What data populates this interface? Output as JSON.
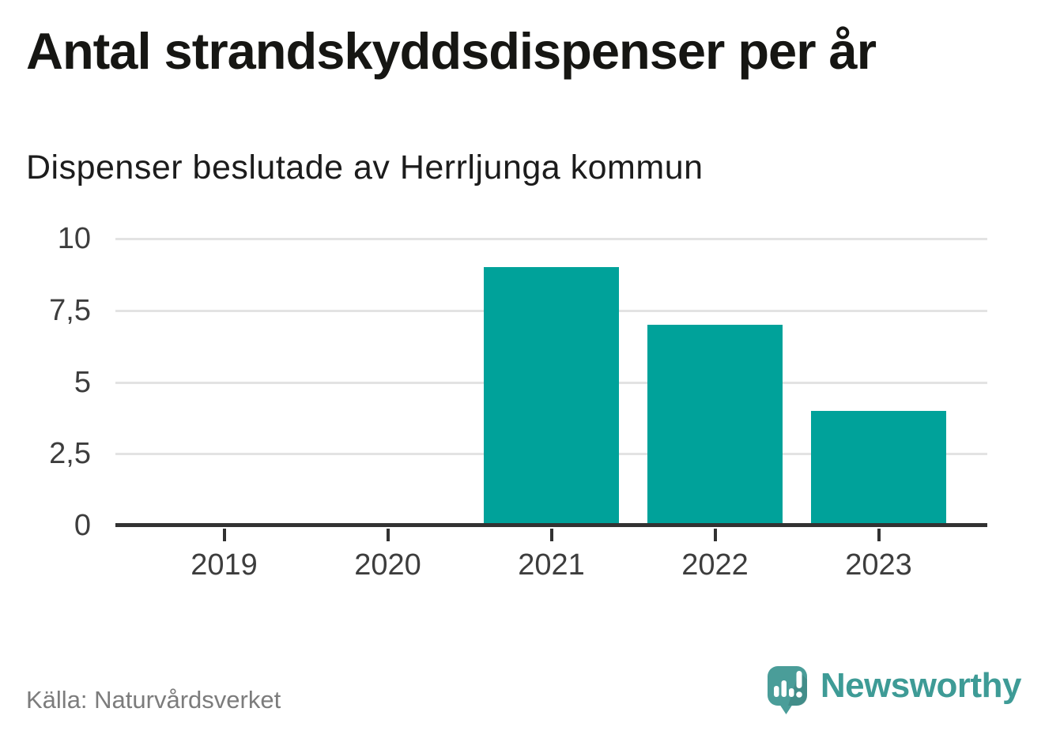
{
  "header": {
    "title": "Antal strandskyddsdispenser per år",
    "subtitle": "Dispenser beslutade av Herrljunga kommun"
  },
  "chart_data": {
    "type": "bar",
    "title": "Antal strandskyddsdispenser per år",
    "subtitle": "Dispenser beslutade av Herrljunga kommun",
    "categories": [
      "2019",
      "2020",
      "2021",
      "2022",
      "2023"
    ],
    "values": [
      0,
      0,
      9,
      7,
      4
    ],
    "xlabel": "",
    "ylabel": "",
    "ylim": [
      0,
      10
    ],
    "yticks": [
      0,
      2.5,
      5,
      7.5,
      10
    ],
    "ytick_labels": [
      "0",
      "2,5",
      "5",
      "7,5",
      "10"
    ],
    "bar_color": "#00A29A",
    "grid": "horizontal",
    "legend": false,
    "source": "Källa: Naturvårdsverket"
  },
  "footer": {
    "source": "Källa: Naturvårdsverket",
    "brand_name": "Newsworthy"
  },
  "icons": {
    "brand_logo": "newsworthy-speech-bubble-bar-chart-icon"
  },
  "colors": {
    "bar": "#00A29A",
    "axis": "#323232",
    "gridline": "#E3E3E3",
    "tick_text": "#3D3D3D",
    "title_text": "#161613",
    "muted_text": "#7C7C7C",
    "brand": "#3E9B96",
    "logo_bubble": "#4A9D99"
  }
}
